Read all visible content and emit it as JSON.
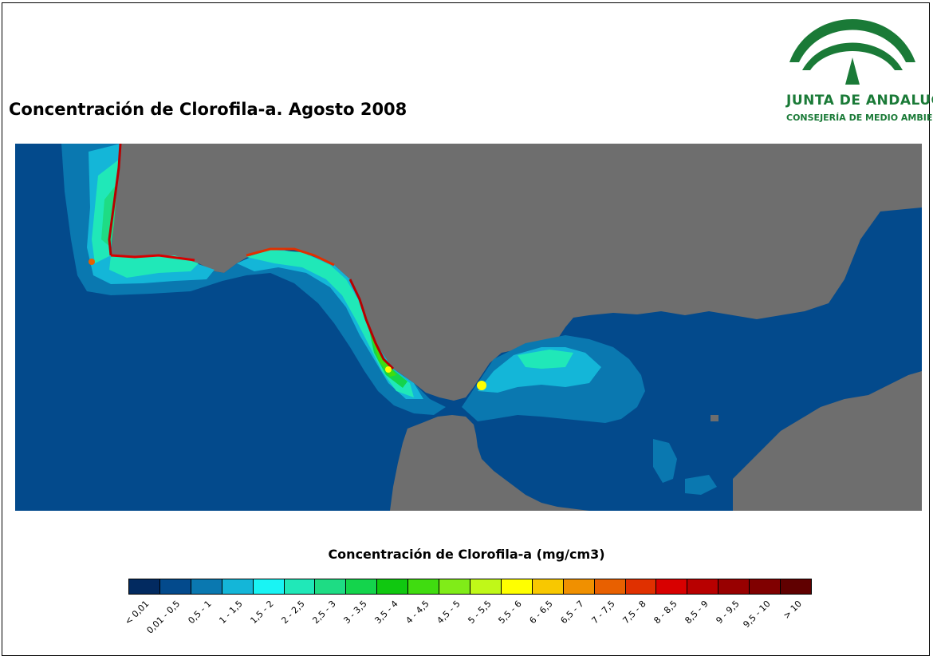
{
  "title": "Concentración de Clorofila-a. Agosto 2008",
  "logo": {
    "name": "JUNTA DE ANDALUCIA",
    "subtitle": "CONSEJERÍA DE MEDIO AMBIENTE",
    "color": "#1a7a37"
  },
  "map": {
    "land_color": "#6e6e6e",
    "open_sea_color": "#034a8c"
  },
  "legend": {
    "title": "Concentración de Clorofila-a (mg/cm3)",
    "classes": [
      {
        "label": "< 0,01",
        "color": "#022a60"
      },
      {
        "label": "0,01 - 0,5",
        "color": "#034a8c"
      },
      {
        "label": "0,5 - 1",
        "color": "#0a78b0"
      },
      {
        "label": "1 - 1,5",
        "color": "#14b6d8"
      },
      {
        "label": "1,5 - 2",
        "color": "#19f4f4"
      },
      {
        "label": "2 - 2,5",
        "color": "#20e8b8"
      },
      {
        "label": "2,5 - 3",
        "color": "#1edc84"
      },
      {
        "label": "3 - 3,5",
        "color": "#14d44c"
      },
      {
        "label": "3,5 - 4",
        "color": "#10c810"
      },
      {
        "label": "4 - 4,5",
        "color": "#40dc10"
      },
      {
        "label": "4,5 - 5",
        "color": "#80ec18"
      },
      {
        "label": "5 - 5,5",
        "color": "#c0f818"
      },
      {
        "label": "5,5 - 6",
        "color": "#ffff00"
      },
      {
        "label": "6 - 6,5",
        "color": "#f8c800"
      },
      {
        "label": "6,5 - 7",
        "color": "#f09000"
      },
      {
        "label": "7 - 7,5",
        "color": "#e86000"
      },
      {
        "label": "7,5 - 8",
        "color": "#e03000"
      },
      {
        "label": "8 - 8,5",
        "color": "#d80000"
      },
      {
        "label": "8,5 - 9",
        "color": "#b80000"
      },
      {
        "label": "9 - 9,5",
        "color": "#980000"
      },
      {
        "label": "9,5 - 10",
        "color": "#800000"
      },
      {
        "label": "> 10",
        "color": "#600000"
      }
    ]
  }
}
